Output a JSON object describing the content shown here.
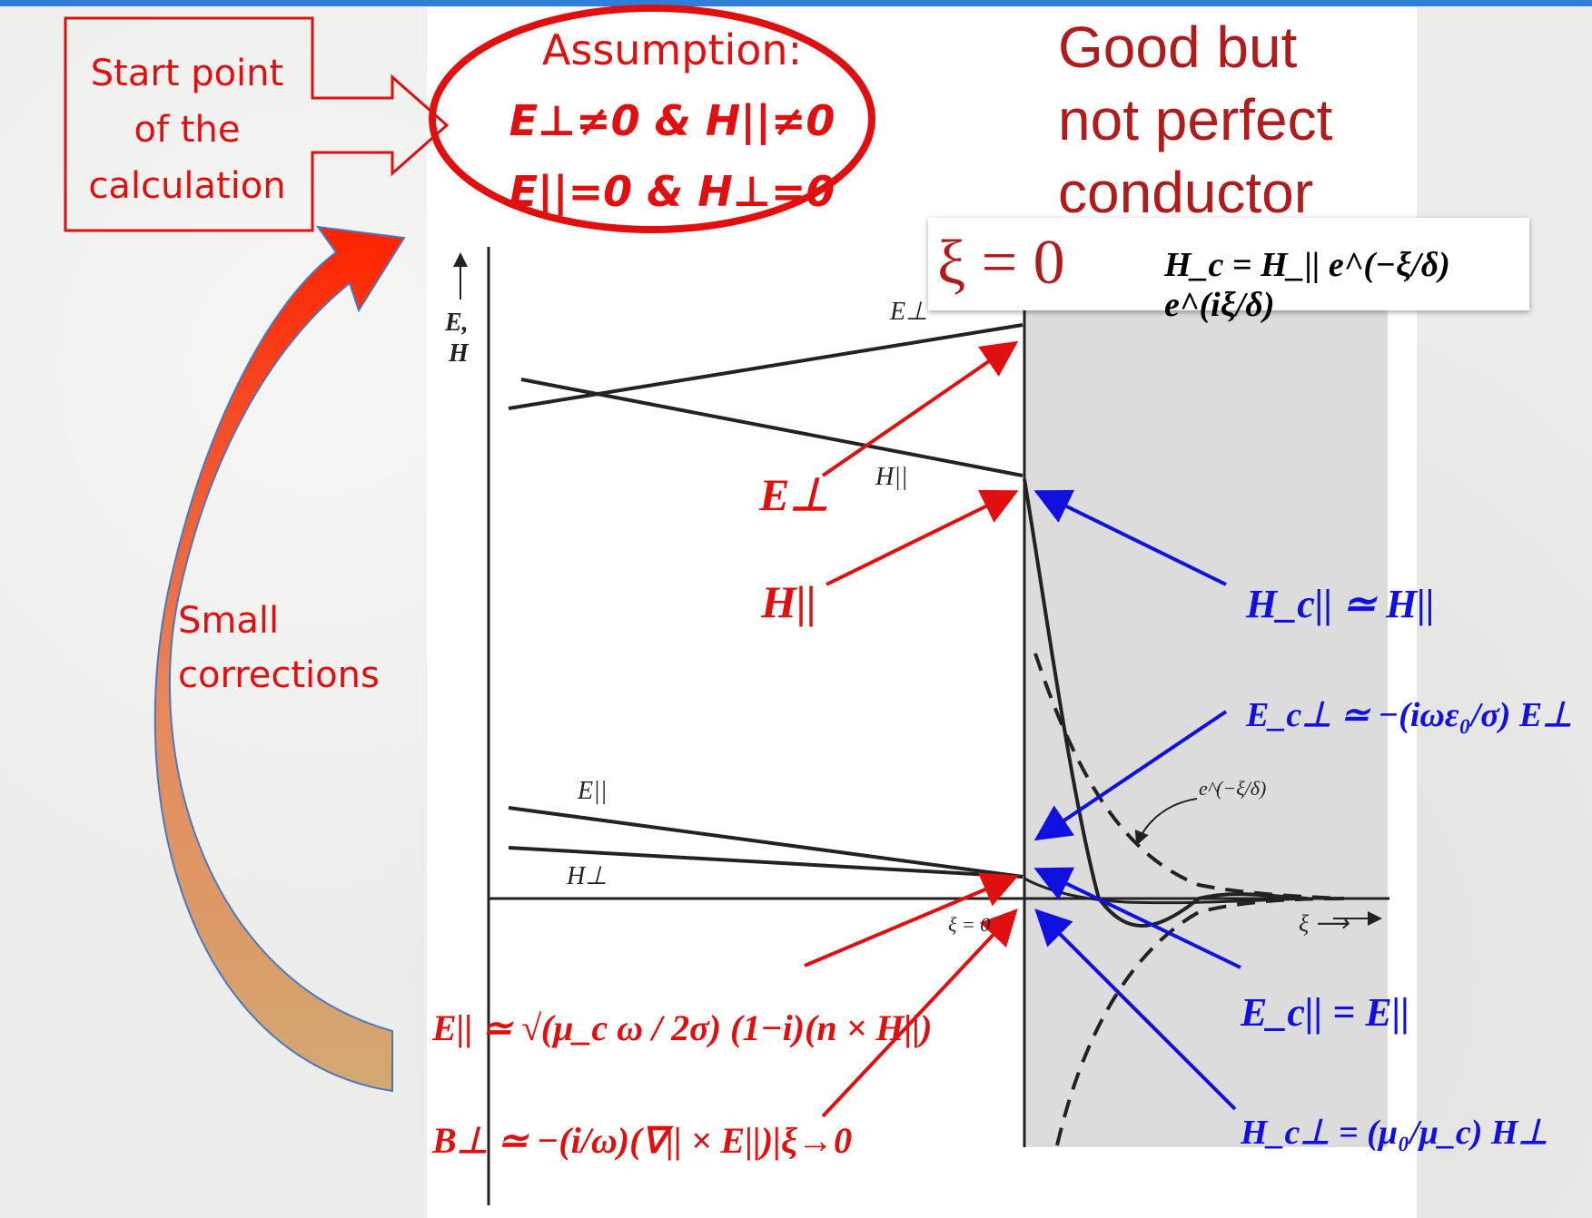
{
  "start_box": {
    "line1": "Start point",
    "line2": "of the",
    "line3": "calculation"
  },
  "assumption": {
    "title": "Assumption:",
    "line1": "E⊥≠0 & H||≠0",
    "line2": "E||=0 & H⊥=0"
  },
  "good_conductor": {
    "line1": "Good but",
    "line2": "not perfect",
    "line3": "conductor"
  },
  "small_corrections": {
    "line1": "Small",
    "line2": "corrections"
  },
  "boundary_formula": {
    "xi_zero": "ξ = 0",
    "hc_expr": "H_c = H_|| e^(−ξ/δ) e^(iξ/δ)"
  },
  "graph": {
    "y_axis_label_1": "E,",
    "y_axis_label_2": "H",
    "x_axis_label": "ξ ⟶",
    "origin_label": "ξ = 0",
    "decay_label": "e^(−ξ/δ)",
    "curve_labels": {
      "e_perp": "E⊥",
      "h_par": "H||",
      "e_par": "E||",
      "h_perp": "H⊥"
    }
  },
  "red_labels": {
    "e_perp": "E⊥",
    "h_par": "H||"
  },
  "blue_relations": {
    "hc_par": "H_c|| ≃ H||",
    "ec_perp": "E_c⊥ ≃ −(iωε₀/σ) E⊥",
    "ec_par": "E_c|| = E||",
    "hc_perp": "H_c⊥ = (μ₀/μ_c) H⊥"
  },
  "red_formulas": {
    "e_par": "E|| ≃ √(μ_c ω / 2σ) (1−i)(n × H||)",
    "b_perp": "B⊥ ≃ −(i/ω)(∇|| × E||)|ξ→0"
  },
  "colors": {
    "red": "#e01010",
    "blue": "#1010e0",
    "dark_red": "#b01c1c",
    "accent_blue": "#2f7fd8"
  }
}
